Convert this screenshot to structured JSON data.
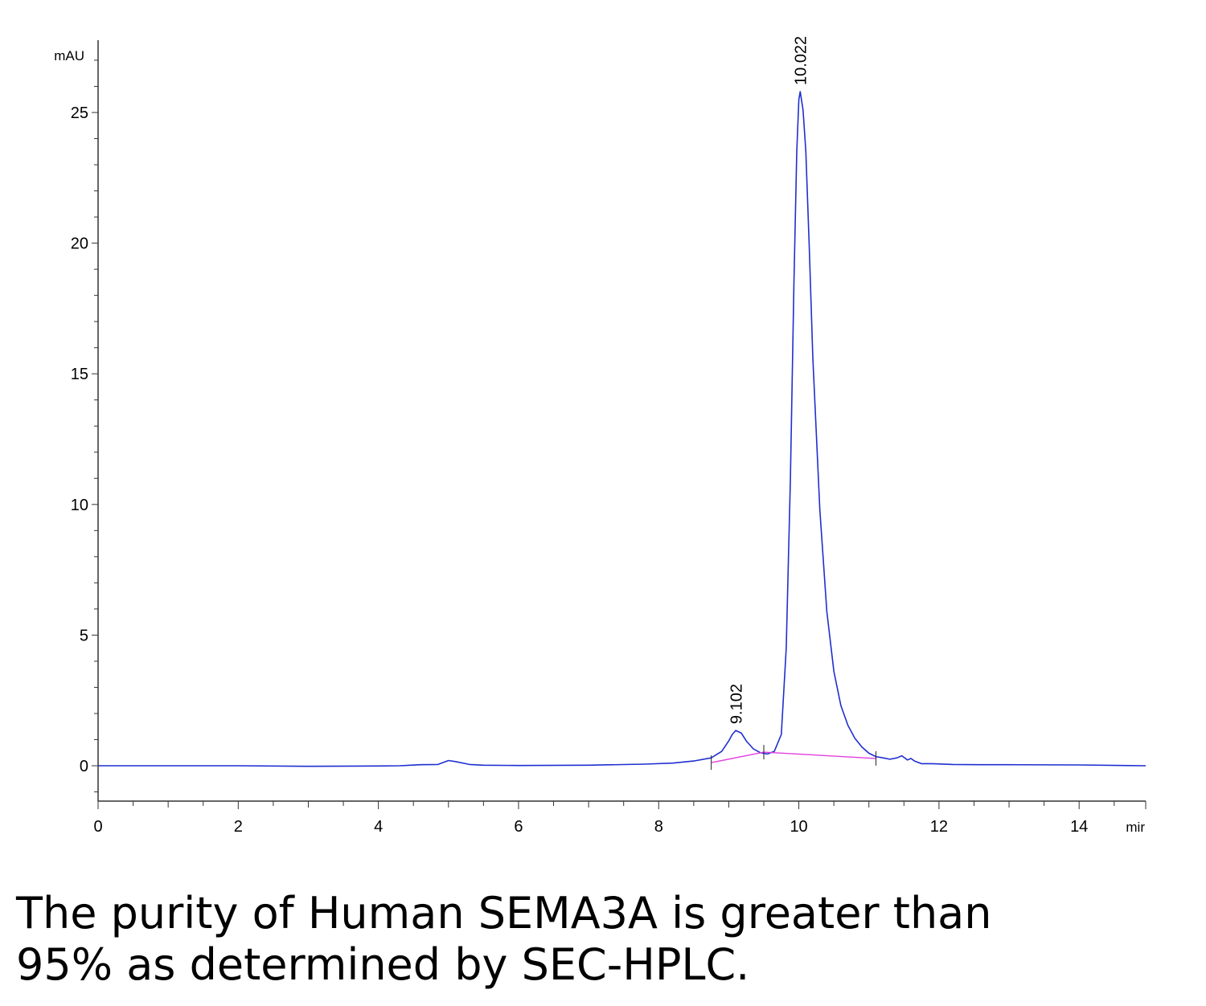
{
  "chart_data": {
    "type": "line",
    "ylabel": "mAU",
    "xlabel": "mir",
    "xlim": [
      0,
      14.95
    ],
    "ylim": [
      -1.3,
      27.3
    ],
    "x_ticks": [
      0,
      2,
      4,
      6,
      8,
      10,
      12,
      14
    ],
    "y_ticks": [
      0,
      5,
      10,
      15,
      20,
      25
    ],
    "x_tick_labels": [
      "0",
      "2",
      "4",
      "6",
      "8",
      "10",
      "12",
      "14"
    ],
    "y_tick_labels": [
      "0",
      "5",
      "10",
      "15",
      "20",
      "25"
    ],
    "grid": false,
    "series": [
      {
        "color": "#1f2fd0",
        "x": [
          0,
          1,
          2,
          3,
          4,
          4.3,
          4.6,
          4.85,
          5.0,
          5.1,
          5.3,
          5.5,
          6,
          7,
          7.8,
          8.2,
          8.5,
          8.75,
          8.9,
          9.0,
          9.05,
          9.1,
          9.18,
          9.25,
          9.35,
          9.45,
          9.55,
          9.65,
          9.75,
          9.82,
          9.88,
          9.93,
          9.97,
          10.0,
          10.02,
          10.06,
          10.1,
          10.15,
          10.2,
          10.3,
          10.4,
          10.5,
          10.6,
          10.7,
          10.8,
          10.9,
          11.0,
          11.1,
          11.2,
          11.3,
          11.4,
          11.47,
          11.55,
          11.6,
          11.65,
          11.75,
          11.9,
          12.2,
          12.6,
          13.0,
          14.0,
          14.95
        ],
        "y": [
          0,
          0,
          0,
          -0.02,
          -0.01,
          0.0,
          0.04,
          0.05,
          0.2,
          0.16,
          0.05,
          0.02,
          0.01,
          0.02,
          0.06,
          0.1,
          0.18,
          0.3,
          0.55,
          0.95,
          1.2,
          1.35,
          1.25,
          0.95,
          0.65,
          0.5,
          0.45,
          0.55,
          1.2,
          4.5,
          11.0,
          18.5,
          23.5,
          25.5,
          25.8,
          25.1,
          23.5,
          19.8,
          15.6,
          9.8,
          5.9,
          3.6,
          2.3,
          1.55,
          1.05,
          0.72,
          0.48,
          0.35,
          0.3,
          0.25,
          0.3,
          0.38,
          0.22,
          0.28,
          0.18,
          0.08,
          0.08,
          0.05,
          0.04,
          0.04,
          0.03,
          0.0
        ]
      },
      {
        "color": "#e040e0",
        "x": [
          8.75,
          9.5,
          11.1
        ],
        "y": [
          0.12,
          0.52,
          0.28
        ]
      }
    ],
    "peaks": [
      {
        "x": 9.102,
        "y": 1.35,
        "label": "9.102"
      },
      {
        "x": 10.022,
        "y": 25.8,
        "label": "10.022"
      }
    ],
    "integration_marks": [
      8.75,
      9.5,
      11.1
    ]
  },
  "caption": {
    "line1": "The purity of Human SEMA3A is greater than",
    "line2": "95% as determined by SEC-HPLC."
  }
}
